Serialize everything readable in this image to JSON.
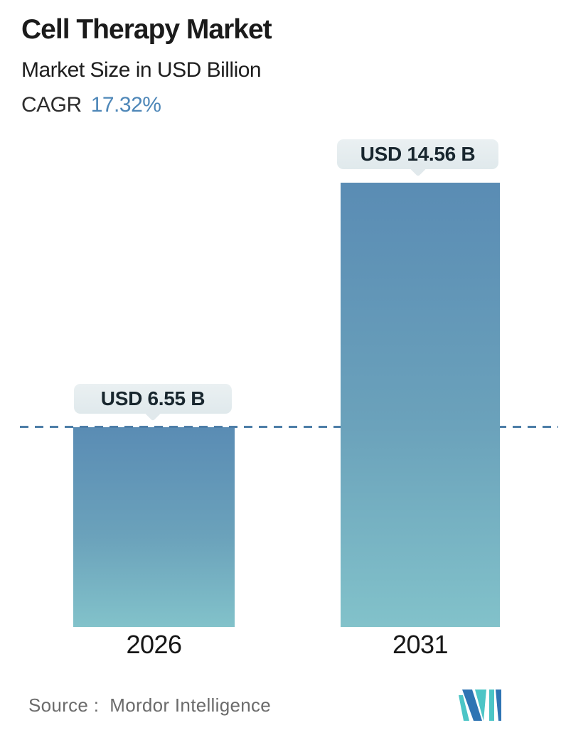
{
  "header": {
    "title": "Cell Therapy Market",
    "subtitle": "Market Size in USD Billion",
    "cagr_label": "CAGR",
    "cagr_value": "17.32%"
  },
  "chart_data": {
    "type": "bar",
    "title": "Cell Therapy Market",
    "subtitle": "Market Size in USD Billion",
    "unit": "USD Billion",
    "cagr_percent": 17.32,
    "categories": [
      "2026",
      "2031"
    ],
    "values": [
      6.55,
      14.56
    ],
    "value_labels": [
      "USD 6.55 B",
      "USD 14.56 B"
    ],
    "ylim": [
      0,
      14.56
    ],
    "reference_line": {
      "value": 6.55,
      "style": "dashed",
      "spans_full_width": true
    },
    "grid": false,
    "legend": "none",
    "bar_gradient": [
      "#5a8cb4",
      "#82c2ca"
    ]
  },
  "footer": {
    "source_label": "Source :",
    "source_value": "Mordor Intelligence",
    "logo_name": "mordor-intelligence-logo"
  },
  "colors": {
    "background": "#ffffff",
    "title_text": "#1b1b1b",
    "cagr_value_blue": "#4e87b8",
    "bar_top": "#5a8cb4",
    "bar_bottom": "#82c2ca",
    "badge_background": "#e5ecef",
    "badge_text": "#18262e",
    "dashed_line": "#4d7ea7",
    "source_text": "#6b6b6b",
    "logo_blue": "#2e74b3",
    "logo_teal": "#4cc5c6"
  }
}
